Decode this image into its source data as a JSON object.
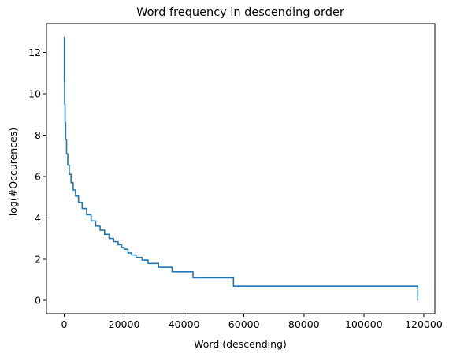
{
  "chart_data": {
    "type": "line",
    "title": "Word frequency in descending order",
    "xlabel": "Word (descending)",
    "ylabel": "log(#Occurences)",
    "xlim": [
      -5900,
      123700
    ],
    "ylim": [
      -0.64,
      13.4
    ],
    "xticks": [
      0,
      20000,
      40000,
      60000,
      80000,
      100000,
      120000
    ],
    "xtick_labels": [
      "0",
      "20000",
      "40000",
      "60000",
      "80000",
      "100000",
      "120000"
    ],
    "yticks": [
      0,
      2,
      4,
      6,
      8,
      10,
      12
    ],
    "ytick_labels": [
      "0",
      "2",
      "4",
      "6",
      "8",
      "10",
      "12"
    ],
    "grid": false,
    "legend": "none",
    "series": [
      {
        "color": "#1f77b4",
        "step_style": "steps-post",
        "x": [
          0,
          60,
          150,
          300,
          500,
          800,
          1200,
          1700,
          2300,
          3000,
          3800,
          4800,
          6000,
          7500,
          9000,
          10500,
          12000,
          13500,
          15000,
          16500,
          18000,
          19200,
          20000,
          21300,
          22500,
          24000,
          26000,
          28000,
          31500,
          36000,
          43000,
          56500,
          118000
        ],
        "y": [
          12.75,
          10.6,
          9.5,
          8.6,
          7.8,
          7.1,
          6.55,
          6.1,
          5.7,
          5.35,
          5.05,
          4.75,
          4.45,
          4.15,
          3.85,
          3.6,
          3.4,
          3.2,
          3.0,
          2.85,
          2.7,
          2.56,
          2.48,
          2.3,
          2.2,
          2.08,
          1.95,
          1.79,
          1.61,
          1.39,
          1.1,
          0.69,
          0.0
        ]
      }
    ]
  }
}
